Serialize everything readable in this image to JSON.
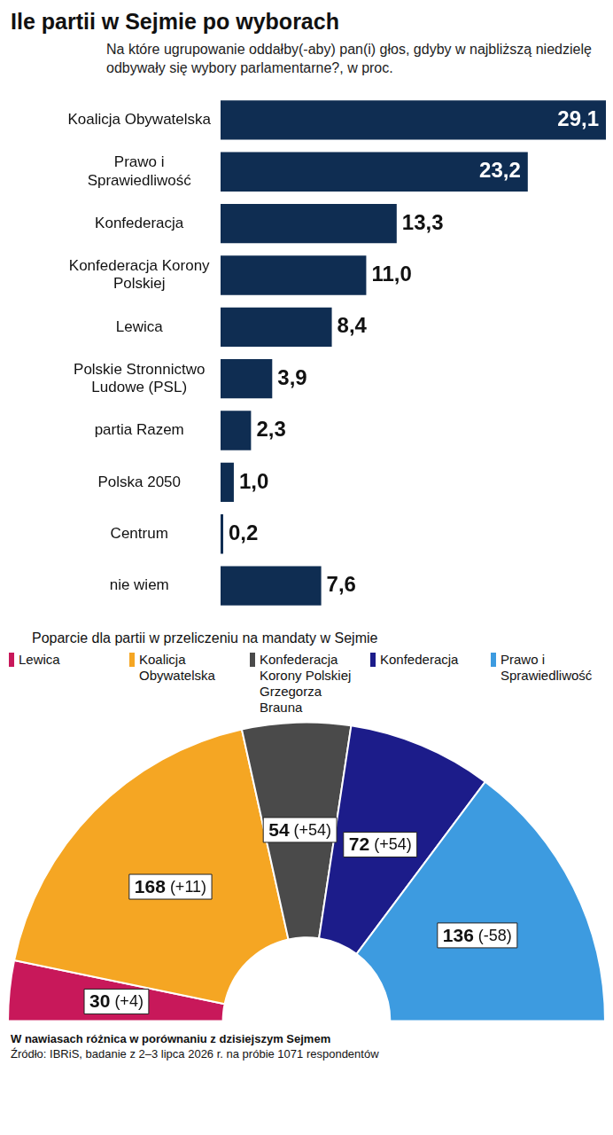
{
  "chart_data": [
    {
      "type": "bar",
      "title": "Ile partii w Sejmie po wyborach",
      "subtitle": "Na które ugrupowanie oddałby(-aby) pan(i) głos, gdyby w najbliższą niedzielę odbywały się wybory parlamentarne?, w proc.",
      "orientation": "horizontal",
      "categories": [
        "Koalicja Obywatelska",
        "Prawo i Sprawiedliwość",
        "Konfederacja",
        "Konfederacja Korony Polskiej",
        "Lewica",
        "Polskie Stronnictwo Ludowe (PSL)",
        "partia Razem",
        "Polska 2050",
        "Centrum",
        "nie wiem"
      ],
      "values": [
        29.1,
        23.2,
        13.3,
        11.0,
        8.4,
        3.9,
        2.3,
        1.0,
        0.2,
        7.6
      ],
      "value_labels": [
        "29,1",
        "23,2",
        "13,3",
        "11,0",
        "8,4",
        "3,9",
        "2,3",
        "1,0",
        "0,2",
        "7,6"
      ],
      "color": "#0f2d52",
      "xlim": [
        0,
        29.1
      ],
      "data_labels": true,
      "tick_labels": "y",
      "grid": false
    },
    {
      "type": "doughnut",
      "title": "Poparcie dla partii w przeliczeniu na mandaty w Sejmie",
      "categories": [
        "Lewica",
        "Koalicja Obywatelska",
        "Konfederacja Korony Polskiej Grzegorza Brauna",
        "Konfederacja",
        "Prawo i Sprawiedliwość"
      ],
      "values": [
        30,
        168,
        54,
        72,
        136
      ],
      "change_labels": [
        "(+4)",
        "(+11)",
        "(+54)",
        "(+54)",
        "(-58)"
      ],
      "colors": [
        "#c8185a",
        "#f5a623",
        "#4a4a4a",
        "#1c1c8a",
        "#3d9be0"
      ],
      "data_labels": true,
      "legend": "top",
      "annotations": [
        "W nawiasach różnica w porównaniu z dzisiejszym Sejmem",
        "Źródło: IBRiS, badanie z 2–3 lipca 2026 r. na próbie 1071 respondentów"
      ]
    }
  ]
}
